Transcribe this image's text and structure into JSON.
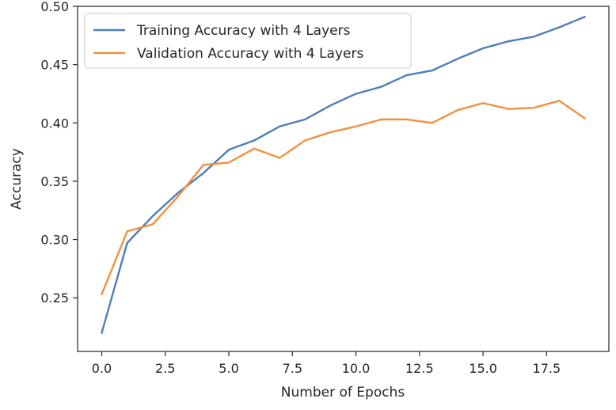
{
  "chart_data": {
    "type": "line",
    "title": "",
    "xlabel": "Number of Epochs",
    "ylabel": "Accuracy",
    "xlim": [
      -0.95,
      19.95
    ],
    "ylim": [
      0.204,
      0.5
    ],
    "x_ticks": [
      0.0,
      2.5,
      5.0,
      7.5,
      10.0,
      12.5,
      15.0,
      17.5
    ],
    "x_tick_labels": [
      "0.0",
      "2.5",
      "5.0",
      "7.5",
      "10.0",
      "12.5",
      "15.0",
      "17.5"
    ],
    "y_ticks": [
      0.25,
      0.3,
      0.35,
      0.4,
      0.45,
      0.5
    ],
    "y_tick_labels": [
      "0.25",
      "0.30",
      "0.35",
      "0.40",
      "0.45",
      "0.50"
    ],
    "x": [
      0,
      1,
      2,
      3,
      4,
      5,
      6,
      7,
      8,
      9,
      10,
      11,
      12,
      13,
      14,
      15,
      16,
      17,
      18,
      19
    ],
    "series": [
      {
        "name": "Training Accuracy with 4 Layers",
        "color": "#4c7fb8",
        "values": [
          0.22,
          0.297,
          0.32,
          0.34,
          0.357,
          0.377,
          0.385,
          0.397,
          0.403,
          0.415,
          0.425,
          0.431,
          0.441,
          0.445,
          0.455,
          0.464,
          0.47,
          0.474,
          0.482,
          0.491
        ]
      },
      {
        "name": "Validation Accuracy with 4 Layers",
        "color": "#f0913f",
        "values": [
          0.253,
          0.307,
          0.313,
          0.337,
          0.364,
          0.366,
          0.378,
          0.37,
          0.385,
          0.392,
          0.397,
          0.403,
          0.403,
          0.4,
          0.411,
          0.417,
          0.412,
          0.413,
          0.419,
          0.404
        ]
      }
    ],
    "grid": false,
    "legend_position": "top-left"
  }
}
